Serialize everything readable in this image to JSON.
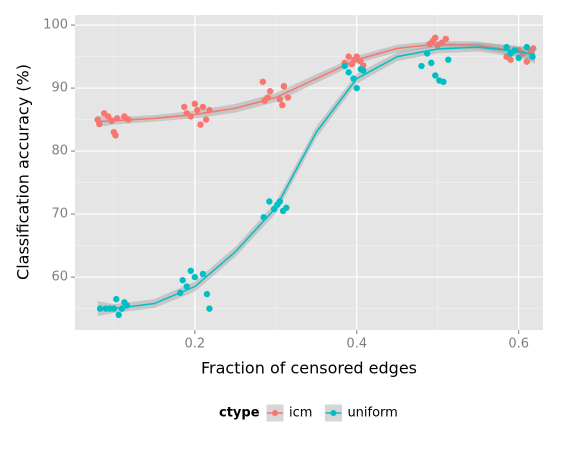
{
  "chart_data": {
    "type": "scatter",
    "x_label": "Fraction of censored edges",
    "y_label": "Classification accuracy (%)",
    "legend_title": "ctype",
    "legend_position": "bottom",
    "xlim": [
      0.052,
      0.63
    ],
    "ylim": [
      51.6,
      101.6
    ],
    "xticks": [
      0.2,
      0.4,
      0.6
    ],
    "yticks": [
      60,
      70,
      80,
      90,
      100
    ],
    "grid": true,
    "minor_grid": true,
    "series": [
      {
        "name": "icm",
        "color": "#F8766D",
        "x": [
          0.08,
          0.082,
          0.088,
          0.093,
          0.097,
          0.1,
          0.102,
          0.104,
          0.113,
          0.118,
          0.187,
          0.19,
          0.195,
          0.2,
          0.203,
          0.207,
          0.21,
          0.214,
          0.218,
          0.284,
          0.286,
          0.29,
          0.293,
          0.305,
          0.308,
          0.31,
          0.315,
          0.385,
          0.39,
          0.394,
          0.397,
          0.4,
          0.404,
          0.408,
          0.49,
          0.494,
          0.497,
          0.5,
          0.505,
          0.51,
          0.585,
          0.59,
          0.6,
          0.605,
          0.61,
          0.615,
          0.618
        ],
        "values": [
          85,
          84.3,
          86,
          85.5,
          84.8,
          83,
          82.5,
          85.2,
          85.5,
          85,
          87,
          86,
          85.5,
          87.5,
          86.5,
          84.2,
          87,
          85,
          86.5,
          91,
          88,
          88.5,
          89.5,
          88.2,
          87.3,
          90.3,
          88.5,
          94,
          95,
          93.8,
          94.5,
          95,
          94.3,
          93.6,
          97,
          97.5,
          98,
          96.8,
          97.2,
          97.8,
          95,
          94.5,
          96,
          95.5,
          94.2,
          95.8,
          96.3
        ],
        "fit": {
          "x": [
            0.08,
            0.1,
            0.15,
            0.2,
            0.25,
            0.3,
            0.35,
            0.4,
            0.45,
            0.5,
            0.55,
            0.6,
            0.62
          ],
          "values": [
            84.7,
            84.8,
            85.2,
            85.8,
            86.8,
            88.5,
            91.5,
            94.5,
            96.3,
            97,
            96.8,
            95.8,
            95.3
          ],
          "lower": [
            83.8,
            84.2,
            84.7,
            85.2,
            86.1,
            87.8,
            90.8,
            93.9,
            95.7,
            96.5,
            96.2,
            95.1,
            94.3
          ],
          "upper": [
            85.6,
            85.4,
            85.7,
            86.4,
            87.5,
            89.2,
            92.2,
            95.1,
            96.9,
            97.5,
            97.4,
            96.5,
            96.3
          ]
        }
      },
      {
        "name": "uniform",
        "color": "#00BFC4",
        "x": [
          0.083,
          0.09,
          0.095,
          0.1,
          0.103,
          0.106,
          0.11,
          0.113,
          0.116,
          0.182,
          0.185,
          0.19,
          0.195,
          0.2,
          0.21,
          0.215,
          0.218,
          0.285,
          0.292,
          0.298,
          0.302,
          0.305,
          0.309,
          0.313,
          0.385,
          0.39,
          0.396,
          0.4,
          0.405,
          0.408,
          0.48,
          0.487,
          0.492,
          0.497,
          0.502,
          0.507,
          0.513,
          0.585,
          0.59,
          0.595,
          0.6,
          0.61,
          0.617
        ],
        "values": [
          55,
          55,
          55,
          55,
          56.5,
          54,
          55,
          56,
          55.5,
          57.5,
          59.5,
          58.5,
          61,
          60,
          60.5,
          57.3,
          55,
          69.5,
          72,
          70.8,
          71.5,
          72,
          70.5,
          71,
          93.5,
          92.5,
          91.5,
          90,
          93,
          92.8,
          93.5,
          95.5,
          94,
          92,
          91.2,
          91,
          94.5,
          96.5,
          95.5,
          96,
          94.8,
          96.5,
          95
        ],
        "fit": {
          "x": [
            0.08,
            0.1,
            0.15,
            0.2,
            0.25,
            0.3,
            0.35,
            0.4,
            0.45,
            0.5,
            0.55,
            0.6,
            0.62
          ],
          "values": [
            55,
            55,
            55.8,
            58.5,
            64,
            71,
            83,
            91.5,
            95,
            96.2,
            96.5,
            95.8,
            95.2
          ],
          "lower": [
            53.8,
            54.3,
            55.1,
            57.7,
            63.2,
            70.1,
            82.1,
            90.7,
            94.3,
            95.5,
            95.8,
            94.9,
            93.9
          ],
          "upper": [
            56.2,
            55.7,
            56.5,
            59.3,
            64.8,
            71.9,
            83.9,
            92.3,
            95.7,
            96.9,
            97.2,
            96.7,
            96.5
          ]
        }
      }
    ]
  }
}
